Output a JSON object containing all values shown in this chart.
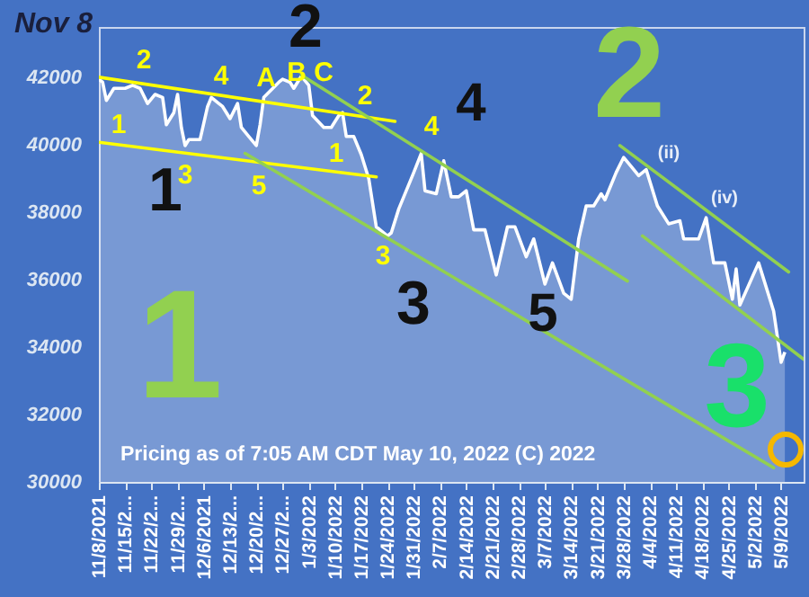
{
  "chart_data": {
    "type": "area",
    "title": "Nov 8",
    "xlim": [
      "2021-11-08",
      "2022-05-15"
    ],
    "xticks": [
      {
        "value": "2021-11-08",
        "label": "11/8/2021"
      },
      {
        "value": "2021-11-15",
        "label": "11/15/2..."
      },
      {
        "value": "2021-11-22",
        "label": "11/22/2..."
      },
      {
        "value": "2021-11-29",
        "label": "11/29/2..."
      },
      {
        "value": "2021-12-06",
        "label": "12/6/2021"
      },
      {
        "value": "2021-12-13",
        "label": "12/13/2..."
      },
      {
        "value": "2021-12-20",
        "label": "12/20/2..."
      },
      {
        "value": "2021-12-27",
        "label": "12/27/2..."
      },
      {
        "value": "2022-01-03",
        "label": "1/3/2022"
      },
      {
        "value": "2022-01-10",
        "label": "1/10/2022"
      },
      {
        "value": "2022-01-17",
        "label": "1/17/2022"
      },
      {
        "value": "2022-01-24",
        "label": "1/24/2022"
      },
      {
        "value": "2022-01-31",
        "label": "1/31/2022"
      },
      {
        "value": "2022-02-07",
        "label": "2/7/2022"
      },
      {
        "value": "2022-02-14",
        "label": "2/14/2022"
      },
      {
        "value": "2022-02-21",
        "label": "2/21/2022"
      },
      {
        "value": "2022-02-28",
        "label": "2/28/2022"
      },
      {
        "value": "2022-03-07",
        "label": "3/7/2022"
      },
      {
        "value": "2022-03-14",
        "label": "3/14/2022"
      },
      {
        "value": "2022-03-21",
        "label": "3/21/2022"
      },
      {
        "value": "2022-03-28",
        "label": "3/28/2022"
      },
      {
        "value": "2022-04-04",
        "label": "4/4/2022"
      },
      {
        "value": "2022-04-11",
        "label": "4/11/2022"
      },
      {
        "value": "2022-04-18",
        "label": "4/18/2022"
      },
      {
        "value": "2022-04-25",
        "label": "4/25/2022"
      },
      {
        "value": "2022-05-02",
        "label": "5/2/2022"
      },
      {
        "value": "2022-05-09",
        "label": "5/9/2022"
      }
    ],
    "ylim": [
      30000,
      43500
    ],
    "yticks": [
      30000,
      32000,
      34000,
      36000,
      38000,
      40000,
      42000
    ],
    "grid": false,
    "series": [
      {
        "type": "area",
        "color": "#ffffff",
        "x": [
          "2021-11-08",
          "2021-11-09",
          "2021-11-10",
          "2021-11-12",
          "2021-11-15",
          "2021-11-17",
          "2021-11-19",
          "2021-11-21",
          "2021-11-23",
          "2021-11-25",
          "2021-11-26",
          "2021-11-28",
          "2021-11-29",
          "2021-11-30",
          "2021-12-01",
          "2021-12-02",
          "2021-12-05",
          "2021-12-07",
          "2021-12-08",
          "2021-12-10",
          "2021-12-11",
          "2021-12-13",
          "2021-12-15",
          "2021-12-16",
          "2021-12-18",
          "2021-12-20",
          "2021-12-21",
          "2021-12-22",
          "2021-12-26",
          "2021-12-27",
          "2021-12-29",
          "2021-12-30",
          "2022-01-01",
          "2022-01-03",
          "2022-01-04",
          "2022-01-07",
          "2022-01-09",
          "2022-01-11",
          "2022-01-12",
          "2022-01-13",
          "2022-01-15",
          "2022-01-17",
          "2022-01-19",
          "2022-01-21",
          "2022-01-24",
          "2022-01-25",
          "2022-01-27",
          "2022-01-31",
          "2022-02-02",
          "2022-02-03",
          "2022-02-06",
          "2022-02-08",
          "2022-02-10",
          "2022-02-12",
          "2022-02-14",
          "2022-02-16",
          "2022-02-19",
          "2022-02-22",
          "2022-02-25",
          "2022-02-27",
          "2022-03-02",
          "2022-03-04",
          "2022-03-07",
          "2022-03-09",
          "2022-03-12",
          "2022-03-14",
          "2022-03-16",
          "2022-03-18",
          "2022-03-20",
          "2022-03-22",
          "2022-03-23",
          "2022-03-26",
          "2022-03-28",
          "2022-03-30",
          "2022-04-01",
          "2022-04-03",
          "2022-04-06",
          "2022-04-09",
          "2022-04-12",
          "2022-04-13",
          "2022-04-17",
          "2022-04-19",
          "2022-04-21",
          "2022-04-24",
          "2022-04-26",
          "2022-04-27",
          "2022-04-28",
          "2022-05-03",
          "2022-05-07",
          "2022-05-09",
          "2022-05-10"
        ],
        "values": [
          41950,
          41860,
          41320,
          41680,
          41680,
          41770,
          41680,
          41230,
          41500,
          41410,
          40600,
          40960,
          41500,
          40520,
          39980,
          40160,
          40160,
          41140,
          41410,
          41230,
          41140,
          40780,
          41230,
          40520,
          40250,
          39980,
          40600,
          41410,
          41860,
          41950,
          41860,
          41680,
          42040,
          41770,
          40870,
          40520,
          40520,
          40870,
          40960,
          40250,
          40250,
          39710,
          39000,
          37570,
          37300,
          37390,
          38100,
          39180,
          39750,
          38640,
          38550,
          39530,
          38460,
          38460,
          38640,
          37480,
          37480,
          36140,
          37570,
          37570,
          36680,
          37210,
          35870,
          36500,
          35600,
          35420,
          37210,
          38190,
          38190,
          38550,
          38370,
          39180,
          39630,
          39360,
          39090,
          39270,
          38190,
          37660,
          37750,
          37210,
          37210,
          37840,
          36500,
          36500,
          35420,
          36320,
          35250,
          36500,
          35070,
          33550,
          33850
        ]
      },
      {
        "type": "line",
        "color": "#ffff00",
        "x": [
          "2021-11-08",
          "2022-01-26"
        ],
        "values": [
          42010,
          40700
        ]
      },
      {
        "type": "line",
        "color": "#ffff00",
        "x": [
          "2021-11-08",
          "2022-01-21"
        ],
        "values": [
          40080,
          39050
        ]
      },
      {
        "type": "line",
        "color": "#92d050",
        "x": [
          "2022-01-01",
          "2022-03-29"
        ],
        "values": [
          42070,
          35960
        ]
      },
      {
        "type": "line",
        "color": "#92d050",
        "x": [
          "2021-12-17",
          "2022-05-07"
        ],
        "values": [
          39750,
          30420
        ]
      },
      {
        "type": "line",
        "color": "#92d050",
        "x": [
          "2022-03-27",
          "2022-05-11"
        ],
        "values": [
          39980,
          36230
        ]
      },
      {
        "type": "line",
        "color": "#92d050",
        "x": [
          "2022-04-02",
          "2022-05-15"
        ],
        "values": [
          37300,
          33640
        ]
      }
    ],
    "annotations": [
      "2",
      "1",
      "3",
      "4",
      "A",
      "B",
      "C",
      "2",
      "5",
      "1",
      "3",
      "4",
      "(ii)",
      "(iv)",
      "2",
      "1",
      "3",
      "4",
      "5",
      "1",
      "2",
      "3",
      "Pricing as of 7:05 AM CDT May 10, 2022    (C) 2022"
    ]
  }
}
